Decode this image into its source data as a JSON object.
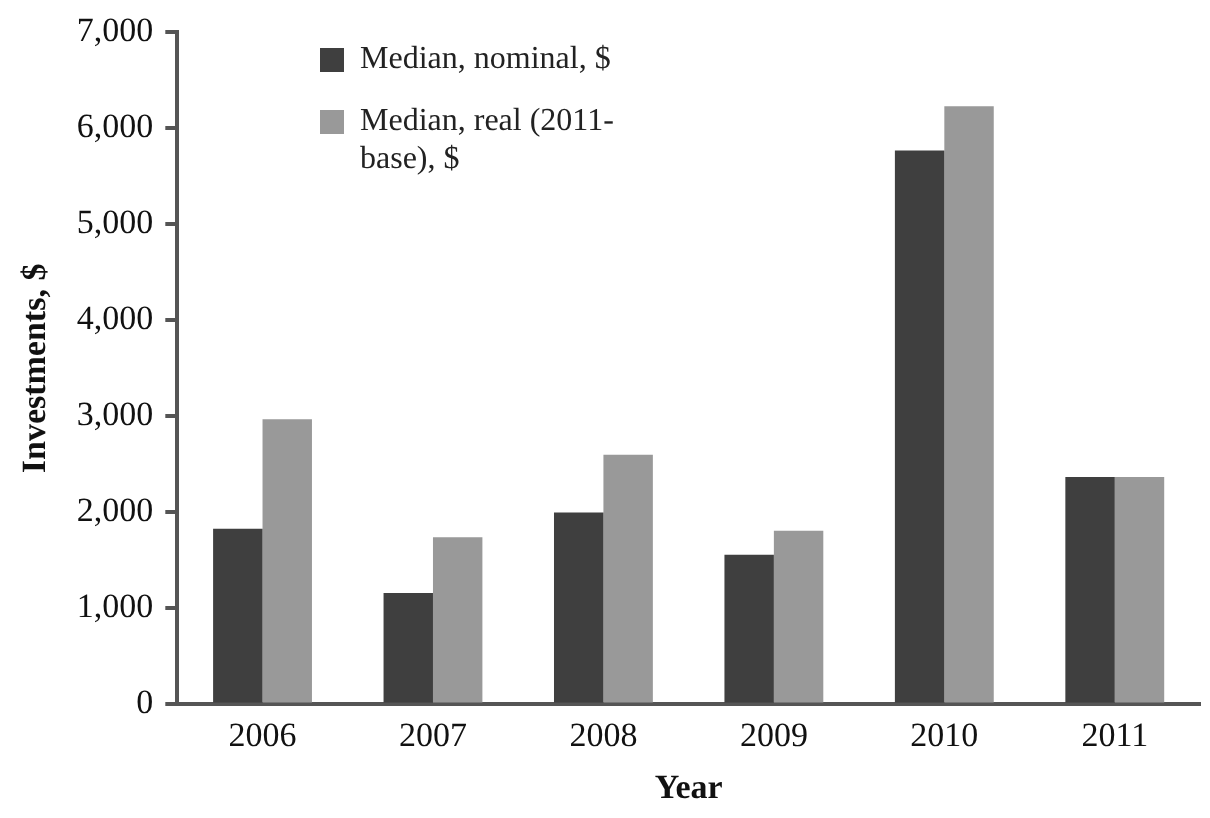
{
  "chart_data": {
    "type": "bar",
    "xlabel": "Year",
    "ylabel": "Investments, $",
    "categories": [
      "2006",
      "2007",
      "2008",
      "2009",
      "2010",
      "2011"
    ],
    "series": [
      {
        "name": "Median, nominal, $",
        "color": "#3f3f3f",
        "values": [
          1830,
          1160,
          2000,
          1560,
          5770,
          2370
        ]
      },
      {
        "name": "Median, real (2011-base), $",
        "color": "#999999",
        "values": [
          2970,
          1740,
          2600,
          1810,
          6230,
          2370
        ]
      }
    ],
    "ylim": [
      0,
      7000
    ],
    "yticks": [
      {
        "value": 0,
        "label": "0"
      },
      {
        "value": 1000,
        "label": "1,000"
      },
      {
        "value": 2000,
        "label": "2,000"
      },
      {
        "value": 3000,
        "label": "3,000"
      },
      {
        "value": 4000,
        "label": "4,000"
      },
      {
        "value": 5000,
        "label": "5,000"
      },
      {
        "value": 6000,
        "label": "6,000"
      },
      {
        "value": 7000,
        "label": "7,000"
      }
    ],
    "grid": false,
    "legend": "top left"
  }
}
